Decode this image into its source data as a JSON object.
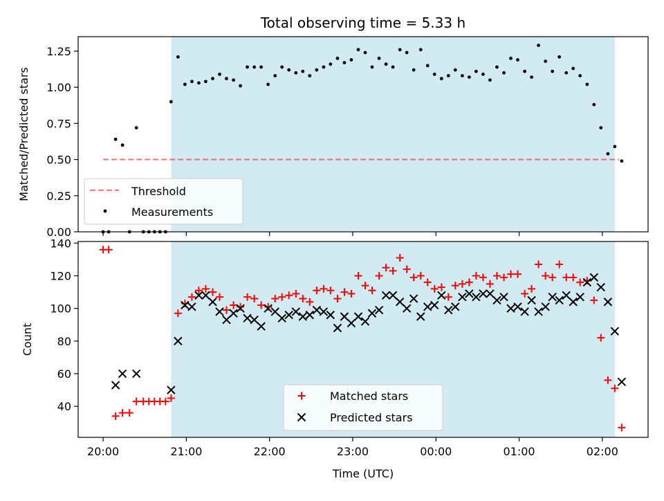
{
  "colors": {
    "shade": "#add8e6",
    "threshold": "#ff0000",
    "measurement": "#000000",
    "matched": "#ff0000",
    "predicted": "#000000"
  },
  "chart_data": [
    {
      "type": "scatter",
      "title": "Total observing time = 5.33 h",
      "xlabel": "",
      "ylabel": "Matched/Predicted stars",
      "ylim": [
        0,
        1.35
      ],
      "yticks": [
        "0.00",
        "0.25",
        "0.50",
        "0.75",
        "1.00",
        "1.25"
      ],
      "xlim_hours": [
        19.7,
        26.55
      ],
      "shaded_span_hours": [
        20.817,
        26.15
      ],
      "threshold": {
        "label": "Threshold",
        "y": 0.5,
        "x_range_hours": [
          20.0,
          26.2
        ]
      },
      "legend": {
        "placement": "lower-left",
        "entries": [
          "Threshold",
          "Measurements"
        ]
      },
      "series": [
        {
          "name": "Measurements",
          "points_hours_y": [
            [
              20.0,
              0.0
            ],
            [
              20.067,
              0.0
            ],
            [
              20.15,
              0.64
            ],
            [
              20.233,
              0.6
            ],
            [
              20.317,
              0.0
            ],
            [
              20.4,
              0.72
            ],
            [
              20.483,
              0.0
            ],
            [
              20.55,
              0.0
            ],
            [
              20.617,
              0.0
            ],
            [
              20.683,
              0.0
            ],
            [
              20.75,
              0.0
            ],
            [
              20.817,
              0.9
            ],
            [
              20.9,
              1.21
            ],
            [
              20.983,
              1.02
            ],
            [
              21.067,
              1.04
            ],
            [
              21.15,
              1.03
            ],
            [
              21.233,
              1.04
            ],
            [
              21.317,
              1.06
            ],
            [
              21.4,
              1.09
            ],
            [
              21.483,
              1.06
            ],
            [
              21.567,
              1.05
            ],
            [
              21.65,
              1.01
            ],
            [
              21.733,
              1.14
            ],
            [
              21.817,
              1.14
            ],
            [
              21.9,
              1.14
            ],
            [
              21.983,
              1.02
            ],
            [
              22.067,
              1.08
            ],
            [
              22.15,
              1.14
            ],
            [
              22.233,
              1.12
            ],
            [
              22.317,
              1.1
            ],
            [
              22.4,
              1.11
            ],
            [
              22.483,
              1.08
            ],
            [
              22.567,
              1.12
            ],
            [
              22.65,
              1.14
            ],
            [
              22.733,
              1.16
            ],
            [
              22.817,
              1.2
            ],
            [
              22.9,
              1.17
            ],
            [
              22.983,
              1.19
            ],
            [
              23.067,
              1.26
            ],
            [
              23.15,
              1.24
            ],
            [
              23.233,
              1.14
            ],
            [
              23.317,
              1.2
            ],
            [
              23.4,
              1.16
            ],
            [
              23.483,
              1.14
            ],
            [
              23.567,
              1.26
            ],
            [
              23.65,
              1.24
            ],
            [
              23.733,
              1.12
            ],
            [
              23.817,
              1.26
            ],
            [
              23.9,
              1.15
            ],
            [
              23.983,
              1.09
            ],
            [
              24.067,
              1.06
            ],
            [
              24.15,
              1.08
            ],
            [
              24.233,
              1.12
            ],
            [
              24.317,
              1.08
            ],
            [
              24.4,
              1.07
            ],
            [
              24.483,
              1.11
            ],
            [
              24.567,
              1.09
            ],
            [
              24.65,
              1.05
            ],
            [
              24.733,
              1.14
            ],
            [
              24.817,
              1.1
            ],
            [
              24.9,
              1.2
            ],
            [
              24.983,
              1.19
            ],
            [
              25.067,
              1.11
            ],
            [
              25.15,
              1.07
            ],
            [
              25.233,
              1.29
            ],
            [
              25.317,
              1.18
            ],
            [
              25.4,
              1.11
            ],
            [
              25.483,
              1.21
            ],
            [
              25.567,
              1.1
            ],
            [
              25.65,
              1.13
            ],
            [
              25.733,
              1.08
            ],
            [
              25.817,
              1.02
            ],
            [
              25.9,
              0.88
            ],
            [
              25.983,
              0.72
            ],
            [
              26.067,
              0.54
            ],
            [
              26.15,
              0.59
            ],
            [
              26.233,
              0.49
            ]
          ]
        }
      ]
    },
    {
      "type": "scatter",
      "title": "",
      "xlabel": "Time (UTC)",
      "ylabel": "Count",
      "ylim": [
        21,
        141
      ],
      "yticks": [
        "40",
        "60",
        "80",
        "100",
        "120",
        "140"
      ],
      "xticks": [
        "20:00",
        "21:00",
        "22:00",
        "23:00",
        "00:00",
        "01:00",
        "02:00"
      ],
      "xlim_hours": [
        19.7,
        26.55
      ],
      "shaded_span_hours": [
        20.817,
        26.15
      ],
      "legend": {
        "placement": "lower-center",
        "entries": [
          "Matched stars",
          "Predicted stars"
        ]
      },
      "series": [
        {
          "name": "Matched stars",
          "points_hours_y": [
            [
              20.0,
              136
            ],
            [
              20.067,
              136
            ],
            [
              20.15,
              34
            ],
            [
              20.233,
              36
            ],
            [
              20.317,
              36
            ],
            [
              20.4,
              43
            ],
            [
              20.483,
              43
            ],
            [
              20.55,
              43
            ],
            [
              20.617,
              43
            ],
            [
              20.683,
              43
            ],
            [
              20.75,
              43
            ],
            [
              20.817,
              45
            ],
            [
              20.9,
              97
            ],
            [
              20.983,
              103
            ],
            [
              21.067,
              107
            ],
            [
              21.15,
              111
            ],
            [
              21.233,
              112
            ],
            [
              21.317,
              110
            ],
            [
              21.4,
              107
            ],
            [
              21.483,
              99
            ],
            [
              21.567,
              102
            ],
            [
              21.65,
              101
            ],
            [
              21.733,
              107
            ],
            [
              21.817,
              106
            ],
            [
              21.9,
              102
            ],
            [
              21.983,
              101
            ],
            [
              22.067,
              106
            ],
            [
              22.15,
              107
            ],
            [
              22.233,
              108
            ],
            [
              22.317,
              109
            ],
            [
              22.4,
              106
            ],
            [
              22.483,
              104
            ],
            [
              22.567,
              111
            ],
            [
              22.65,
              112
            ],
            [
              22.733,
              111
            ],
            [
              22.817,
              106
            ],
            [
              22.9,
              110
            ],
            [
              22.983,
              109
            ],
            [
              23.067,
              120
            ],
            [
              23.15,
              114
            ],
            [
              23.233,
              111
            ],
            [
              23.317,
              120
            ],
            [
              23.4,
              125
            ],
            [
              23.483,
              123
            ],
            [
              23.567,
              131
            ],
            [
              23.65,
              124
            ],
            [
              23.733,
              119
            ],
            [
              23.817,
              120
            ],
            [
              23.9,
              116
            ],
            [
              23.983,
              112
            ],
            [
              24.067,
              113
            ],
            [
              24.15,
              107
            ],
            [
              24.233,
              114
            ],
            [
              24.317,
              115
            ],
            [
              24.4,
              116
            ],
            [
              24.483,
              120
            ],
            [
              24.567,
              119
            ],
            [
              24.65,
              115
            ],
            [
              24.733,
              120
            ],
            [
              24.817,
              119
            ],
            [
              24.9,
              121
            ],
            [
              24.983,
              121
            ],
            [
              25.067,
              109
            ],
            [
              25.15,
              112
            ],
            [
              25.233,
              127
            ],
            [
              25.317,
              120
            ],
            [
              25.4,
              119
            ],
            [
              25.483,
              127
            ],
            [
              25.567,
              119
            ],
            [
              25.65,
              119
            ],
            [
              25.733,
              116
            ],
            [
              25.817,
              117
            ],
            [
              25.9,
              105
            ],
            [
              25.983,
              82
            ],
            [
              26.067,
              56
            ],
            [
              26.15,
              51
            ],
            [
              26.233,
              27
            ]
          ]
        },
        {
          "name": "Predicted stars",
          "points_hours_y": [
            [
              20.15,
              53
            ],
            [
              20.233,
              60
            ],
            [
              20.4,
              60
            ],
            [
              20.817,
              50
            ],
            [
              20.9,
              80
            ],
            [
              20.983,
              102
            ],
            [
              21.067,
              101
            ],
            [
              21.15,
              108
            ],
            [
              21.233,
              108
            ],
            [
              21.317,
              104
            ],
            [
              21.4,
              98
            ],
            [
              21.483,
              93
            ],
            [
              21.567,
              97
            ],
            [
              21.65,
              100
            ],
            [
              21.733,
              94
            ],
            [
              21.817,
              93
            ],
            [
              21.9,
              89
            ],
            [
              21.983,
              100
            ],
            [
              22.067,
              98
            ],
            [
              22.15,
              94
            ],
            [
              22.233,
              96
            ],
            [
              22.317,
              98
            ],
            [
              22.4,
              95
            ],
            [
              22.483,
              96
            ],
            [
              22.567,
              99
            ],
            [
              22.65,
              98
            ],
            [
              22.733,
              96
            ],
            [
              22.817,
              88
            ],
            [
              22.9,
              95
            ],
            [
              22.983,
              91
            ],
            [
              23.067,
              95
            ],
            [
              23.15,
              92
            ],
            [
              23.233,
              97
            ],
            [
              23.317,
              99
            ],
            [
              23.4,
              108
            ],
            [
              23.483,
              108
            ],
            [
              23.567,
              104
            ],
            [
              23.65,
              100
            ],
            [
              23.733,
              106
            ],
            [
              23.817,
              95
            ],
            [
              23.9,
              101
            ],
            [
              23.983,
              102
            ],
            [
              24.067,
              108
            ],
            [
              24.15,
              99
            ],
            [
              24.233,
              101
            ],
            [
              24.317,
              107
            ],
            [
              24.4,
              109
            ],
            [
              24.483,
              107
            ],
            [
              24.567,
              109
            ],
            [
              24.65,
              109
            ],
            [
              24.733,
              105
            ],
            [
              24.817,
              107
            ],
            [
              24.9,
              100
            ],
            [
              24.983,
              101
            ],
            [
              25.067,
              98
            ],
            [
              25.15,
              105
            ],
            [
              25.233,
              98
            ],
            [
              25.317,
              101
            ],
            [
              25.4,
              107
            ],
            [
              25.483,
              105
            ],
            [
              25.567,
              108
            ],
            [
              25.65,
              104
            ],
            [
              25.733,
              107
            ],
            [
              25.817,
              116
            ],
            [
              25.9,
              119
            ],
            [
              25.983,
              113
            ],
            [
              26.067,
              104
            ],
            [
              26.15,
              86
            ],
            [
              26.233,
              55
            ]
          ]
        }
      ]
    }
  ]
}
